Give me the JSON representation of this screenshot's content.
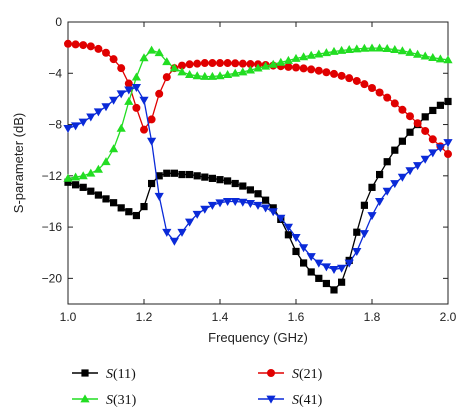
{
  "chart_data": {
    "type": "line",
    "title": "",
    "xlabel": "Frequency (GHz)",
    "ylabel": "S-parameter (dB)",
    "xlim": [
      1.0,
      2.0
    ],
    "ylim": [
      -22,
      0
    ],
    "xticks": [
      1.0,
      1.2,
      1.4,
      1.6,
      1.8,
      2.0
    ],
    "yticks": [
      0,
      -4,
      -8,
      -12,
      -16,
      -20
    ],
    "xtick_labels": [
      "1.0",
      "1.2",
      "1.4",
      "1.6",
      "1.8",
      "2.0"
    ],
    "ytick_labels": [
      "0",
      "−4",
      "−8",
      "−12",
      "−16",
      "−20"
    ],
    "grid": false,
    "legend_position": "below plot",
    "series": [
      {
        "name": "S(11)",
        "color": "#000000",
        "marker": "square",
        "x": [
          1.0,
          1.02,
          1.04,
          1.06,
          1.08,
          1.1,
          1.12,
          1.14,
          1.16,
          1.18,
          1.2,
          1.22,
          1.24,
          1.26,
          1.28,
          1.3,
          1.32,
          1.34,
          1.36,
          1.38,
          1.4,
          1.42,
          1.44,
          1.46,
          1.48,
          1.5,
          1.52,
          1.54,
          1.56,
          1.58,
          1.6,
          1.62,
          1.64,
          1.66,
          1.68,
          1.7,
          1.72,
          1.74,
          1.76,
          1.78,
          1.8,
          1.82,
          1.84,
          1.86,
          1.88,
          1.9,
          1.92,
          1.94,
          1.96,
          1.98,
          2.0
        ],
        "values": [
          -12.5,
          -12.7,
          -12.9,
          -13.2,
          -13.5,
          -13.8,
          -14.1,
          -14.5,
          -14.8,
          -15.1,
          -14.4,
          -12.6,
          -12.0,
          -11.8,
          -11.8,
          -11.9,
          -11.9,
          -12.0,
          -12.1,
          -12.2,
          -12.3,
          -12.4,
          -12.6,
          -12.8,
          -13.1,
          -13.4,
          -13.9,
          -14.5,
          -15.4,
          -16.6,
          -17.9,
          -18.8,
          -19.5,
          -20.0,
          -20.4,
          -20.9,
          -20.3,
          -18.6,
          -16.4,
          -14.3,
          -12.9,
          -11.9,
          -10.9,
          -10.0,
          -9.3,
          -8.6,
          -8.0,
          -7.4,
          -6.9,
          -6.5,
          -6.2
        ]
      },
      {
        "name": "S(21)",
        "color": "#e00000",
        "marker": "circle",
        "x": [
          1.0,
          1.02,
          1.04,
          1.06,
          1.08,
          1.1,
          1.12,
          1.14,
          1.16,
          1.18,
          1.2,
          1.22,
          1.24,
          1.26,
          1.28,
          1.3,
          1.32,
          1.34,
          1.36,
          1.38,
          1.4,
          1.42,
          1.44,
          1.46,
          1.48,
          1.5,
          1.52,
          1.54,
          1.56,
          1.58,
          1.6,
          1.62,
          1.64,
          1.66,
          1.68,
          1.7,
          1.72,
          1.74,
          1.76,
          1.78,
          1.8,
          1.82,
          1.84,
          1.86,
          1.88,
          1.9,
          1.92,
          1.94,
          1.96,
          1.98,
          2.0
        ],
        "values": [
          -1.7,
          -1.75,
          -1.8,
          -1.9,
          -2.1,
          -2.4,
          -2.9,
          -3.6,
          -4.8,
          -6.7,
          -8.4,
          -7.6,
          -5.6,
          -4.3,
          -3.6,
          -3.4,
          -3.3,
          -3.25,
          -3.2,
          -3.2,
          -3.2,
          -3.2,
          -3.22,
          -3.25,
          -3.28,
          -3.3,
          -3.35,
          -3.4,
          -3.45,
          -3.5,
          -3.55,
          -3.62,
          -3.7,
          -3.8,
          -3.92,
          -4.05,
          -4.2,
          -4.38,
          -4.6,
          -4.85,
          -5.15,
          -5.5,
          -5.9,
          -6.35,
          -6.85,
          -7.35,
          -7.9,
          -8.5,
          -9.15,
          -9.7,
          -10.3
        ]
      },
      {
        "name": "S(31)",
        "color": "#22dd22",
        "marker": "triangle-up",
        "x": [
          1.0,
          1.02,
          1.04,
          1.06,
          1.08,
          1.1,
          1.12,
          1.14,
          1.16,
          1.18,
          1.2,
          1.22,
          1.24,
          1.26,
          1.28,
          1.3,
          1.32,
          1.34,
          1.36,
          1.38,
          1.4,
          1.42,
          1.44,
          1.46,
          1.48,
          1.5,
          1.52,
          1.54,
          1.56,
          1.58,
          1.6,
          1.62,
          1.64,
          1.66,
          1.68,
          1.7,
          1.72,
          1.74,
          1.76,
          1.78,
          1.8,
          1.82,
          1.84,
          1.86,
          1.88,
          1.9,
          1.92,
          1.94,
          1.96,
          1.98,
          2.0
        ],
        "values": [
          -12.2,
          -12.1,
          -12.0,
          -11.8,
          -11.5,
          -10.9,
          -9.9,
          -8.3,
          -6.2,
          -4.3,
          -2.8,
          -2.2,
          -2.4,
          -3.1,
          -3.6,
          -3.9,
          -4.1,
          -4.2,
          -4.25,
          -4.25,
          -4.2,
          -4.1,
          -4.0,
          -3.9,
          -3.75,
          -3.6,
          -3.45,
          -3.3,
          -3.15,
          -3.0,
          -2.85,
          -2.72,
          -2.6,
          -2.5,
          -2.4,
          -2.3,
          -2.22,
          -2.15,
          -2.1,
          -2.06,
          -2.04,
          -2.04,
          -2.08,
          -2.15,
          -2.25,
          -2.38,
          -2.52,
          -2.66,
          -2.78,
          -2.88,
          -2.95
        ]
      },
      {
        "name": "S(41)",
        "color": "#0a2ad8",
        "marker": "triangle-down",
        "x": [
          1.0,
          1.02,
          1.04,
          1.06,
          1.08,
          1.1,
          1.12,
          1.14,
          1.16,
          1.18,
          1.2,
          1.22,
          1.24,
          1.26,
          1.28,
          1.3,
          1.32,
          1.34,
          1.36,
          1.38,
          1.4,
          1.42,
          1.44,
          1.46,
          1.48,
          1.5,
          1.52,
          1.54,
          1.56,
          1.58,
          1.6,
          1.62,
          1.64,
          1.66,
          1.68,
          1.7,
          1.72,
          1.74,
          1.76,
          1.78,
          1.8,
          1.82,
          1.84,
          1.86,
          1.88,
          1.9,
          1.92,
          1.94,
          1.96,
          1.98,
          2.0
        ],
        "values": [
          -8.3,
          -8.1,
          -7.8,
          -7.4,
          -7.0,
          -6.6,
          -6.1,
          -5.6,
          -5.3,
          -5.1,
          -6.1,
          -9.3,
          -13.6,
          -16.4,
          -17.1,
          -16.4,
          -15.6,
          -15.0,
          -14.6,
          -14.3,
          -14.1,
          -14.0,
          -14.0,
          -14.05,
          -14.15,
          -14.3,
          -14.5,
          -14.8,
          -15.3,
          -16.0,
          -16.8,
          -17.6,
          -18.3,
          -18.8,
          -19.1,
          -19.3,
          -19.2,
          -18.8,
          -17.9,
          -16.5,
          -15.1,
          -14.0,
          -13.2,
          -12.6,
          -12.1,
          -11.6,
          -11.2,
          -10.7,
          -10.2,
          -9.8,
          -9.4
        ]
      }
    ]
  }
}
